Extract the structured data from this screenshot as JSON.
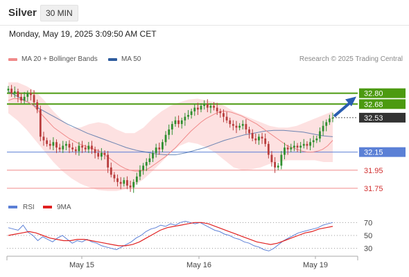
{
  "header": {
    "title": "Silver",
    "timeframe": "30 MIN"
  },
  "datetime": "Monday, May 19, 2025 3:09:50 AM CET",
  "legend": {
    "ma20": {
      "label": "MA 20 + Bollinger Bands",
      "color": "#f08a8a"
    },
    "ma50": {
      "label": "MA 50",
      "color": "#2e5c9e"
    }
  },
  "copyright": "Research © 2025 Trading Central",
  "rsi_legend": {
    "rsi": {
      "label": "RSI",
      "color": "#5b7fd6"
    },
    "ma9": {
      "label": "9MA",
      "color": "#e02020"
    }
  },
  "colors": {
    "up": "#2f8f2f",
    "down": "#b83c3c",
    "band_fill": "#fdd9d9",
    "resistance": "#4c9a10",
    "support_blue": "#5b80d6",
    "support_red": "#f08a8a",
    "arrow": "#2a5db0",
    "last_price_bg": "#333333"
  },
  "chart_data": [
    {
      "type": "candlestick",
      "x_ticks": [
        "May 15",
        "May 16",
        "May 19"
      ],
      "ylim": [
        31.65,
        32.95
      ],
      "last_price": 32.53,
      "levels": [
        {
          "value": 32.8,
          "label": "32.80",
          "kind": "resistance"
        },
        {
          "value": 32.68,
          "label": "32.68",
          "kind": "resistance"
        },
        {
          "value": 32.15,
          "label": "32.15",
          "kind": "pivot"
        },
        {
          "value": 31.95,
          "label": "31.95",
          "kind": "support"
        },
        {
          "value": 31.75,
          "label": "31.75",
          "kind": "support"
        }
      ],
      "closes": [
        32.85,
        32.8,
        32.82,
        32.76,
        32.72,
        32.76,
        32.8,
        32.78,
        32.7,
        32.62,
        32.32,
        32.28,
        32.24,
        32.22,
        32.26,
        32.2,
        32.18,
        32.22,
        32.24,
        32.2,
        32.18,
        32.16,
        32.22,
        32.2,
        32.18,
        32.22,
        32.18,
        32.14,
        32.1,
        32.14,
        32.12,
        31.98,
        31.9,
        31.86,
        31.82,
        31.8,
        31.84,
        31.78,
        31.76,
        31.82,
        31.88,
        31.95,
        32.0,
        32.04,
        32.08,
        32.14,
        32.2,
        32.18,
        32.26,
        32.34,
        32.4,
        32.46,
        32.5,
        32.46,
        32.5,
        32.54,
        32.56,
        32.6,
        32.64,
        32.62,
        32.66,
        32.68,
        32.64,
        32.66,
        32.64,
        32.6,
        32.58,
        32.54,
        32.5,
        32.46,
        32.44,
        32.42,
        32.44,
        32.46,
        32.4,
        32.36,
        32.3,
        32.28,
        32.32,
        32.3,
        32.24,
        32.12,
        32.04,
        31.98,
        32.0,
        32.12,
        32.2,
        32.18,
        32.2,
        32.22,
        32.2,
        32.22,
        32.24,
        32.22,
        32.26,
        32.28,
        32.3,
        32.38,
        32.44,
        32.48,
        32.52,
        32.53
      ],
      "ma20": [
        32.72,
        32.74,
        32.74,
        32.72,
        32.7,
        32.66,
        32.6,
        32.54,
        32.48,
        32.42,
        32.38,
        32.34,
        32.3,
        32.27,
        32.24,
        32.22,
        32.2,
        32.18,
        32.16,
        32.12,
        32.08,
        32.04,
        32.0,
        31.97,
        31.95,
        31.94,
        31.94,
        31.95,
        31.98,
        32.02,
        32.06,
        32.1,
        32.15,
        32.2,
        32.26,
        32.32,
        32.38,
        32.43,
        32.48,
        32.52,
        32.55,
        32.58,
        32.6,
        32.6,
        32.59,
        32.57,
        32.55,
        32.52,
        32.49,
        32.46,
        32.42,
        32.38,
        32.34,
        32.3,
        32.26,
        32.22,
        32.2,
        32.18,
        32.16,
        32.15,
        32.15,
        32.16,
        32.18,
        32.22,
        32.28
      ],
      "ma50": [
        32.82,
        32.76,
        32.7,
        32.64,
        32.58,
        32.52,
        32.46,
        32.41,
        32.36,
        32.32,
        32.28,
        32.24,
        32.2,
        32.17,
        32.15,
        32.13,
        32.12,
        32.12,
        32.14,
        32.17,
        32.2,
        32.24,
        32.28,
        32.31,
        32.34,
        32.36,
        32.38,
        32.39,
        32.39,
        32.38,
        32.37,
        32.35,
        32.33,
        32.32
      ],
      "band_upper": [
        32.92,
        32.92,
        32.88,
        32.82,
        32.72,
        32.6,
        32.5,
        32.42,
        32.42,
        32.46,
        32.48,
        32.46,
        32.4,
        32.36,
        32.36,
        32.42,
        32.52,
        32.6,
        32.66,
        32.7,
        32.73,
        32.74,
        32.72,
        32.7,
        32.66,
        32.6,
        32.56,
        32.52,
        32.48,
        32.44,
        32.42,
        32.42,
        32.44,
        32.48,
        32.52,
        32.56,
        32.6
      ],
      "band_lower": [
        32.58,
        32.5,
        32.4,
        32.28,
        32.16,
        32.04,
        31.94,
        31.86,
        31.8,
        31.76,
        31.73,
        31.72,
        31.72,
        31.74,
        31.78,
        31.85,
        31.94,
        32.04,
        32.14,
        32.22,
        32.26,
        32.24,
        32.2,
        32.14,
        32.06,
        31.98,
        31.95,
        31.96,
        31.98,
        32.02,
        32.04,
        32.06,
        32.06,
        32.06,
        32.06,
        32.04,
        32.04
      ]
    },
    {
      "type": "line",
      "title": "RSI",
      "y_ticks": [
        70,
        50,
        30
      ],
      "ylim": [
        20,
        80
      ],
      "series": [
        {
          "name": "RSI",
          "values": [
            62,
            60,
            58,
            66,
            55,
            50,
            42,
            48,
            44,
            40,
            46,
            50,
            44,
            38,
            42,
            40,
            44,
            40,
            38,
            34,
            32,
            30,
            28,
            32,
            36,
            40,
            46,
            50,
            56,
            60,
            62,
            66,
            64,
            68,
            66,
            70,
            72,
            70,
            68,
            70,
            66,
            62,
            58,
            56,
            52,
            50,
            46,
            44,
            40,
            38,
            34,
            32,
            28,
            26,
            30,
            36,
            42,
            46,
            50,
            54,
            56,
            58,
            60,
            62,
            66,
            68,
            70
          ]
        },
        {
          "name": "9MA",
          "values": [
            50,
            52,
            54,
            56,
            54,
            50,
            46,
            44,
            42,
            42,
            44,
            44,
            42,
            40,
            38,
            36,
            34,
            34,
            36,
            40,
            46,
            52,
            58,
            62,
            64,
            66,
            68,
            70,
            70,
            68,
            64,
            60,
            56,
            52,
            48,
            44,
            40,
            38,
            36,
            38,
            42,
            46,
            50,
            54,
            56,
            60,
            62,
            64
          ]
        }
      ]
    }
  ]
}
